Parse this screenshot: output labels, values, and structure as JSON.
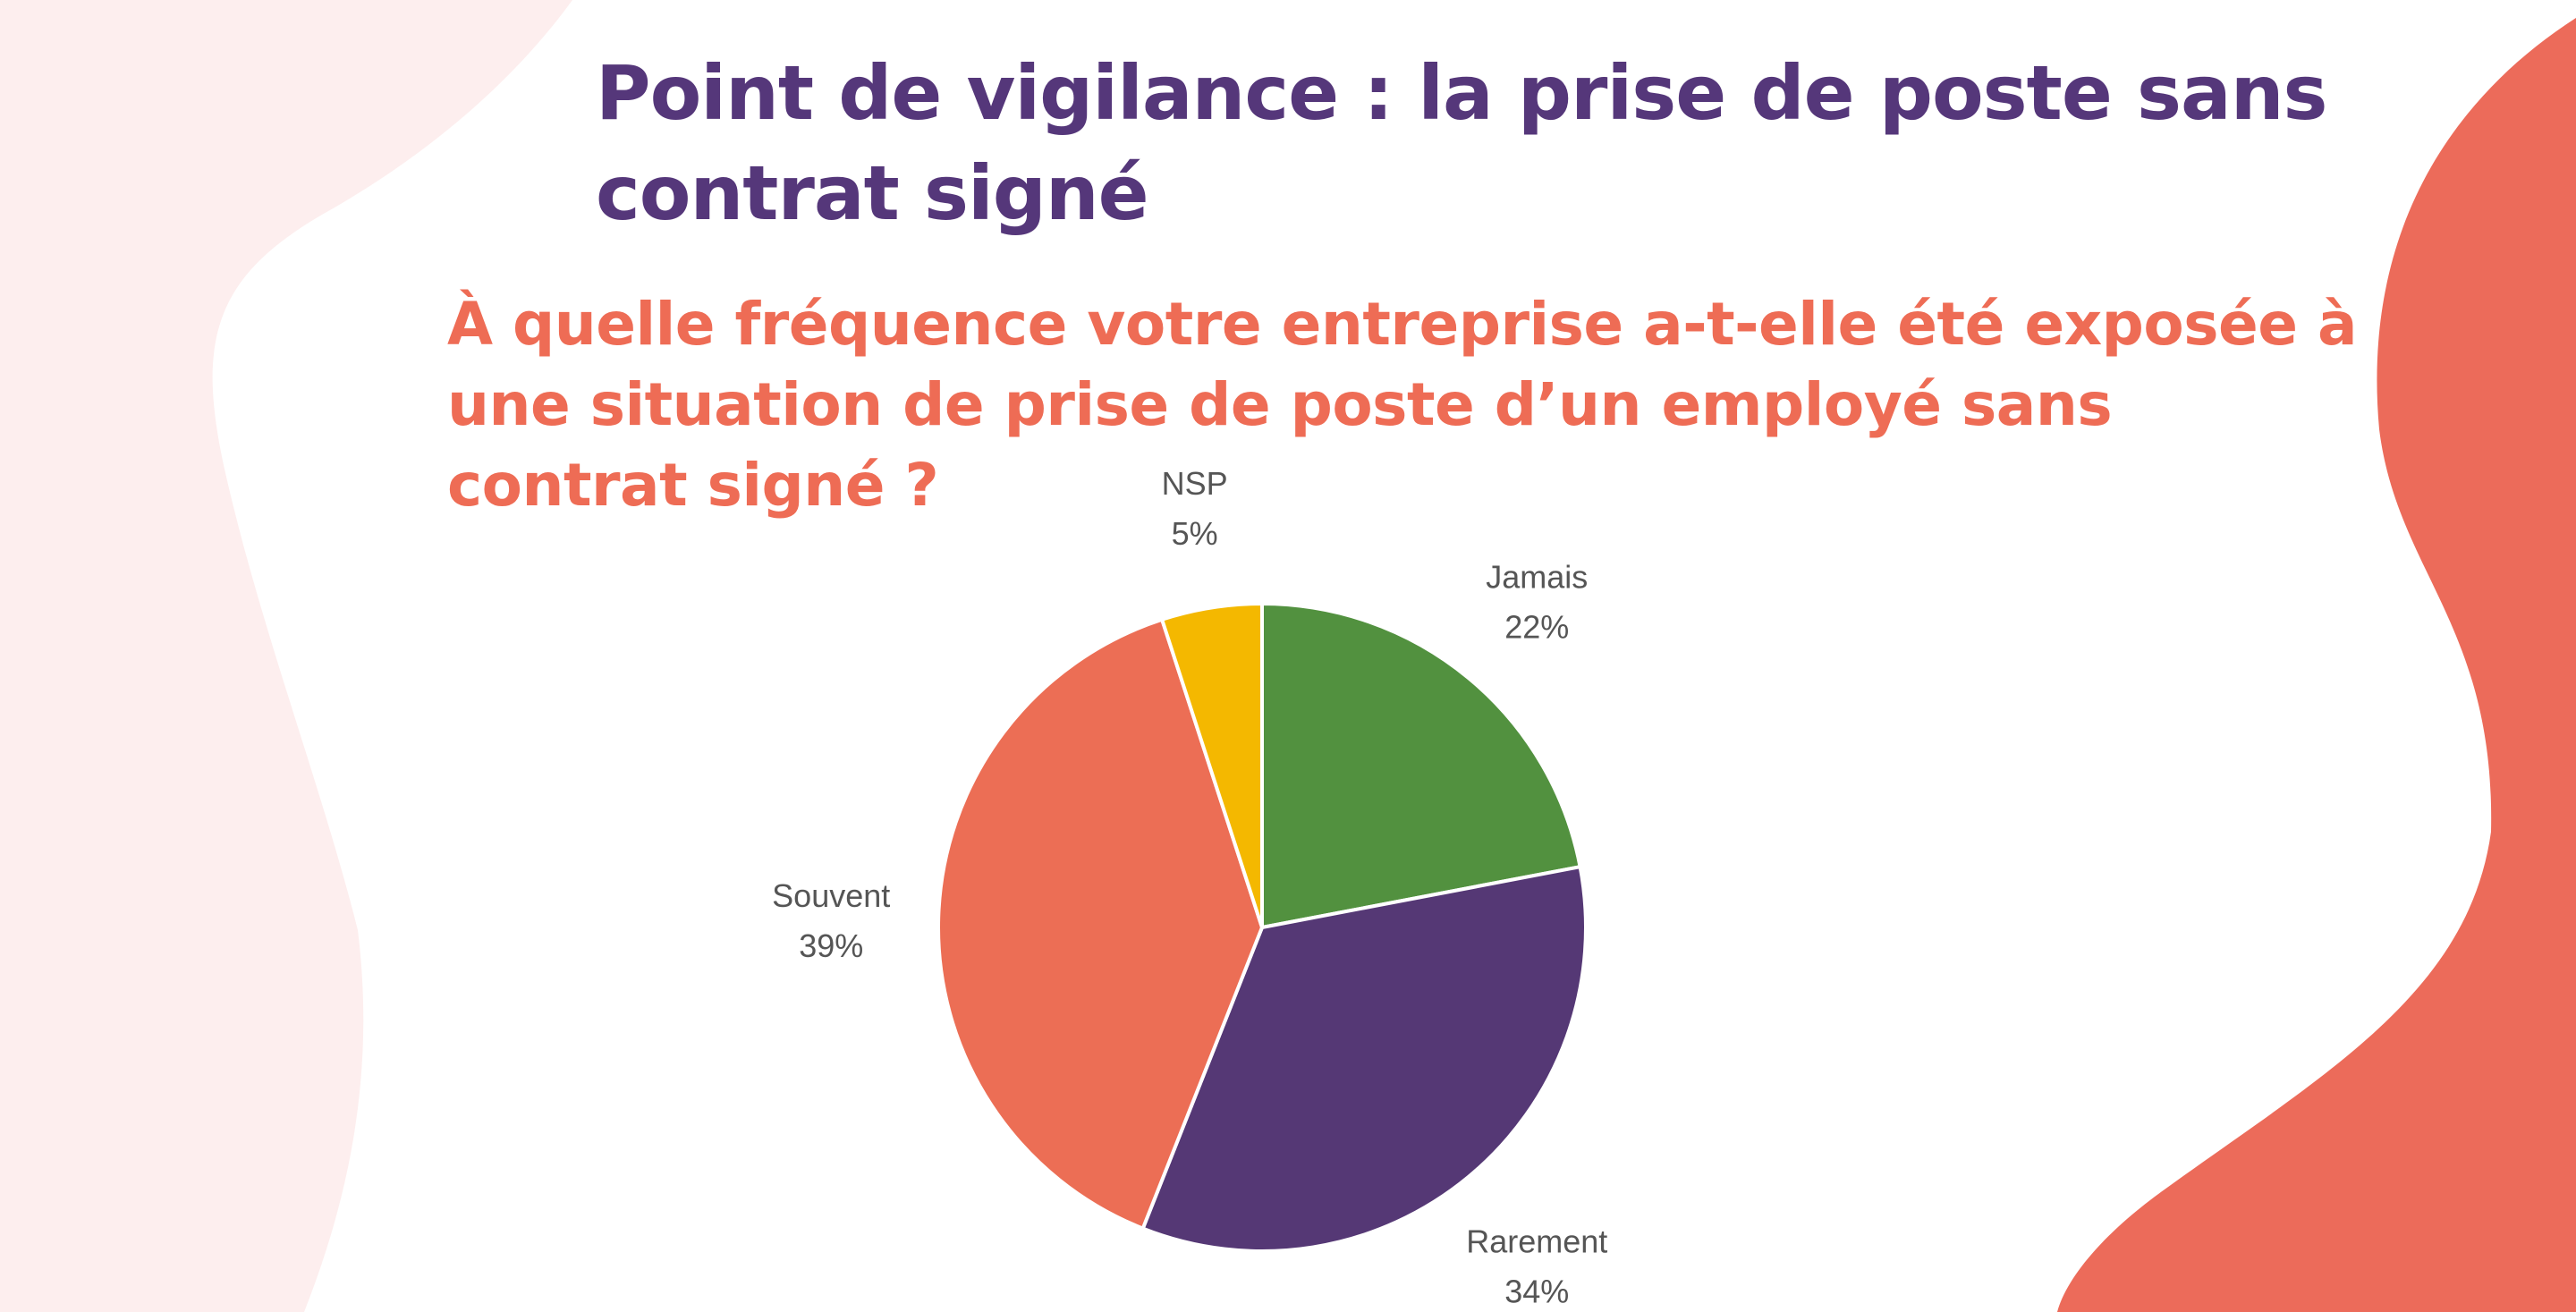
{
  "slide": {
    "title": "Point de vigilance : la prise de poste sans contrat signé",
    "question": "À quelle fréquence votre entreprise a-t-elle été exposée à une situation de prise de poste d’un employé sans contrat signé ?"
  },
  "colors": {
    "title": "#55377a",
    "question": "#ee6c55",
    "blob_light": "#fdeeee",
    "blob_coral": "#ec6b5a"
  },
  "chart_data": {
    "type": "pie",
    "title": "",
    "start_angle_deg": 0,
    "direction": "clockwise",
    "slices": [
      {
        "label": "Jamais",
        "value": 22,
        "display": "22%",
        "color": "#52913f"
      },
      {
        "label": "Rarement",
        "value": 34,
        "display": "34%",
        "color": "#553875"
      },
      {
        "label": "Souvent",
        "value": 39,
        "display": "39%",
        "color": "#ec6e55"
      },
      {
        "label": "NSP",
        "value": 5,
        "display": "5%",
        "color": "#f4b800"
      }
    ],
    "legend": "none",
    "data_labels": "outside"
  }
}
